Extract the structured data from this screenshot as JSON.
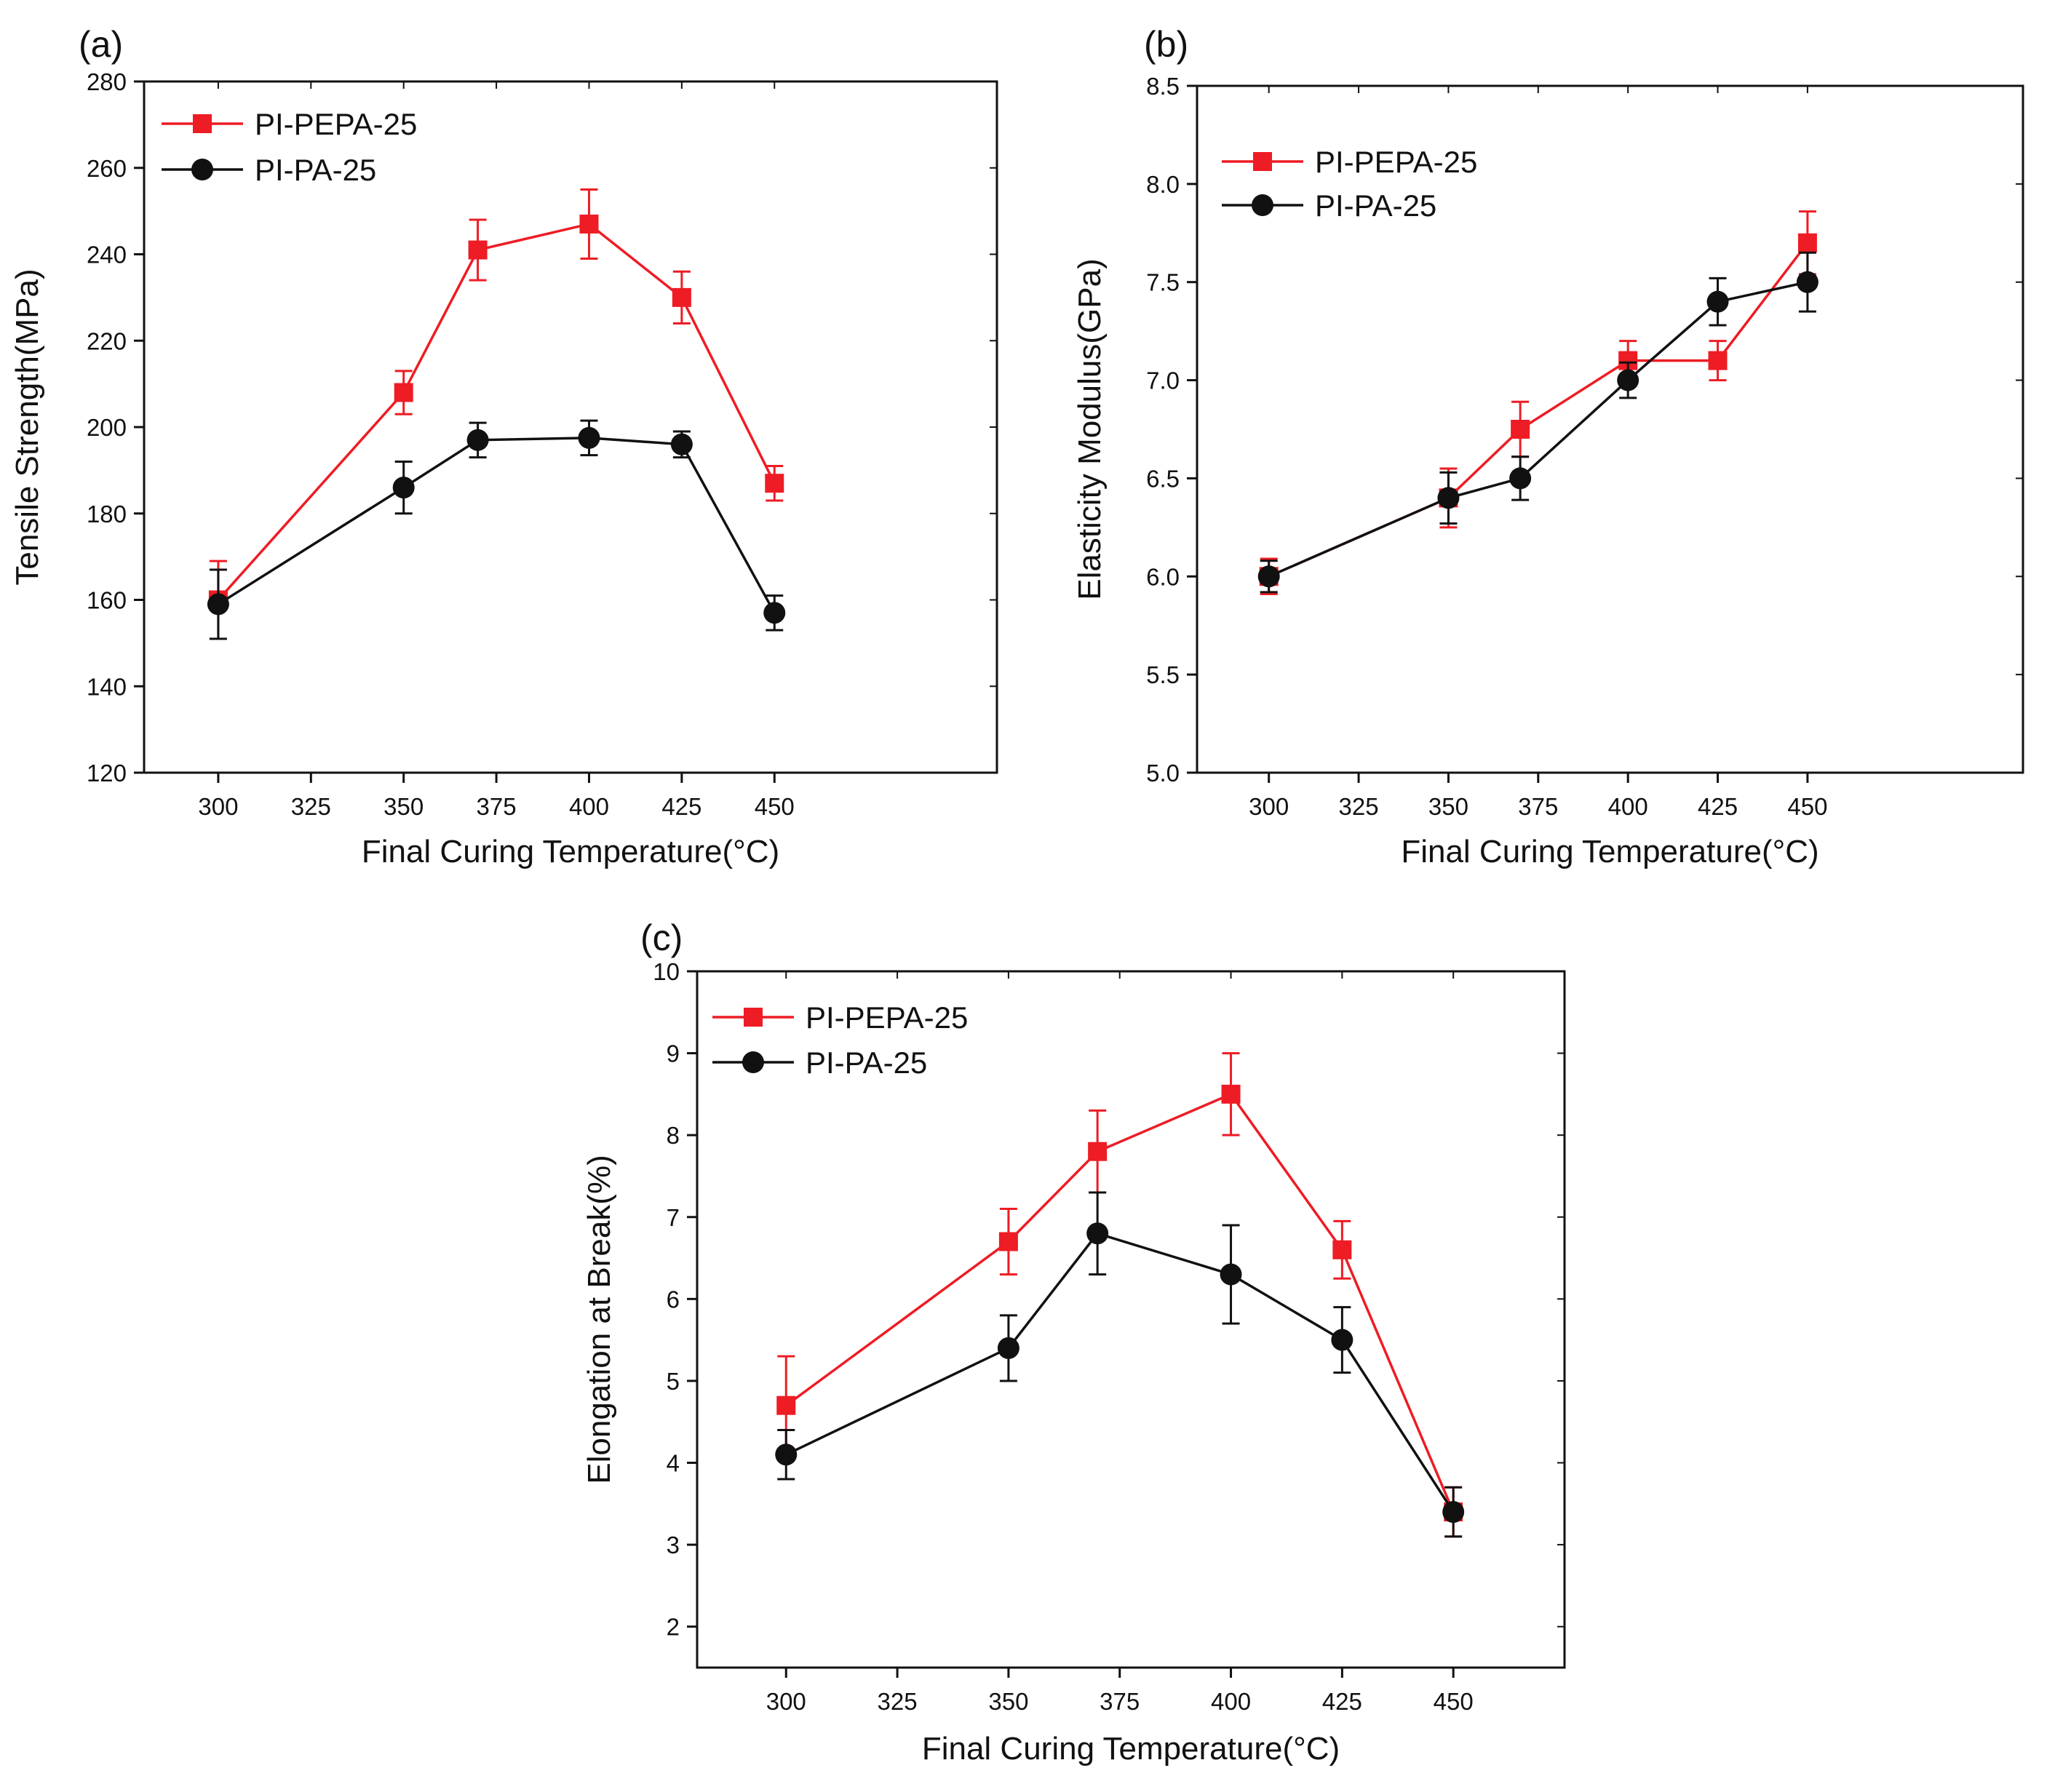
{
  "figure": {
    "colors": {
      "PI-PEPA-25": "#ee1c24",
      "PI-PA-25": "#111111"
    },
    "markers": {
      "PI-PEPA-25": "square",
      "PI-PA-25": "circle"
    }
  },
  "chart_data": [
    {
      "id": "a",
      "panel_label": "(a)",
      "type": "line",
      "xlabel": "Final Curing Temperature(°C)",
      "ylabel": "Tensile Strength(MPa)",
      "xlim": [
        280,
        510
      ],
      "ylim": [
        120,
        280
      ],
      "xticks": [
        300,
        325,
        350,
        375,
        400,
        425,
        450
      ],
      "yticks": [
        120,
        140,
        160,
        180,
        200,
        220,
        240,
        260,
        280
      ],
      "ytick_labels": [
        "120",
        "140",
        "160",
        "180",
        "200",
        "220",
        "240",
        "260",
        "280"
      ],
      "legend_position": "top-left",
      "x": [
        300,
        350,
        370,
        400,
        425,
        450
      ],
      "series": [
        {
          "name": "PI-PEPA-25",
          "values": [
            160,
            208,
            241,
            247,
            230,
            187
          ],
          "errors": [
            9,
            5,
            7,
            8,
            6,
            4
          ]
        },
        {
          "name": "PI-PA-25",
          "values": [
            159,
            186,
            197,
            197.5,
            196,
            157
          ],
          "errors": [
            8,
            6,
            4,
            4,
            3,
            4
          ]
        }
      ]
    },
    {
      "id": "b",
      "panel_label": "(b)",
      "type": "line",
      "xlabel": "Final Curing Temperature(°C)",
      "ylabel": "Elasticity Modulus(GPa)",
      "xlim": [
        280,
        510
      ],
      "ylim": [
        5.0,
        8.5
      ],
      "xticks": [
        300,
        325,
        350,
        375,
        400,
        425,
        450
      ],
      "yticks": [
        5.0,
        5.5,
        6.0,
        6.5,
        7.0,
        7.5,
        8.0,
        8.5
      ],
      "ytick_labels": [
        "5.0",
        "5.5",
        "6.0",
        "6.5",
        "7.0",
        "7.5",
        "8.0",
        "8.5"
      ],
      "legend_position": "top-left",
      "x": [
        300,
        350,
        370,
        400,
        425,
        450
      ],
      "series": [
        {
          "name": "PI-PEPA-25",
          "values": [
            6.0,
            6.4,
            6.75,
            7.1,
            7.1,
            7.7
          ],
          "errors": [
            0.09,
            0.15,
            0.14,
            0.1,
            0.1,
            0.16
          ]
        },
        {
          "name": "PI-PA-25",
          "values": [
            6.0,
            6.4,
            6.5,
            7.0,
            7.4,
            7.5
          ],
          "errors": [
            0.08,
            0.13,
            0.11,
            0.09,
            0.12,
            0.15
          ]
        }
      ]
    },
    {
      "id": "c",
      "panel_label": "(c)",
      "type": "line",
      "xlabel": "Final Curing Temperature(°C)",
      "ylabel": "Elongation at Break(%)",
      "xlim": [
        280,
        475
      ],
      "ylim": [
        1.5,
        10
      ],
      "xticks": [
        300,
        325,
        350,
        375,
        400,
        425,
        450
      ],
      "yticks": [
        2,
        3,
        4,
        5,
        6,
        7,
        8,
        9,
        10
      ],
      "ytick_labels": [
        "2",
        "3",
        "4",
        "5",
        "6",
        "7",
        "8",
        "9",
        "10"
      ],
      "legend_position": "top-left",
      "x": [
        300,
        350,
        370,
        400,
        425,
        450
      ],
      "series": [
        {
          "name": "PI-PEPA-25",
          "values": [
            4.7,
            6.7,
            7.8,
            8.5,
            6.6,
            3.4
          ],
          "errors": [
            0.6,
            0.4,
            0.5,
            0.5,
            0.35,
            0.3
          ]
        },
        {
          "name": "PI-PA-25",
          "values": [
            4.1,
            5.4,
            6.8,
            6.3,
            5.5,
            3.4
          ],
          "errors": [
            0.3,
            0.4,
            0.5,
            0.6,
            0.4,
            0.3
          ]
        }
      ]
    }
  ]
}
